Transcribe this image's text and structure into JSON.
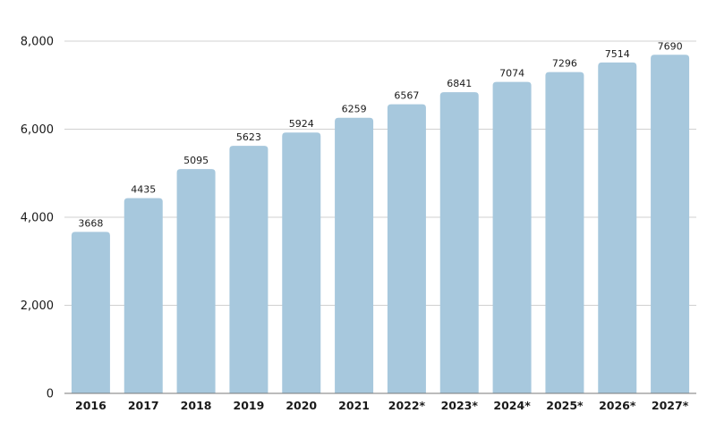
{
  "chart_data": {
    "type": "bar",
    "categories": [
      "2016",
      "2017",
      "2018",
      "2019",
      "2020",
      "2021",
      "2022*",
      "2023*",
      "2024*",
      "2025*",
      "2026*",
      "2027*"
    ],
    "values": [
      3668,
      4435,
      5095,
      5623,
      5924,
      6259,
      6567,
      6841,
      7074,
      7296,
      7514,
      7690
    ],
    "data_labels": [
      "3668",
      "4435",
      "5095",
      "5623",
      "5924",
      "6259",
      "6567",
      "6841",
      "7074",
      "7296",
      "7514",
      "7690"
    ],
    "ylim": [
      0,
      8000
    ],
    "yticks": [
      0,
      2000,
      4000,
      6000,
      8000
    ],
    "ytick_labels": [
      "0",
      "2,000",
      "4,000",
      "6,000",
      "8,000"
    ],
    "grid": true,
    "bar_color": "#a7c8dd",
    "title": "",
    "xlabel": "",
    "ylabel": ""
  }
}
